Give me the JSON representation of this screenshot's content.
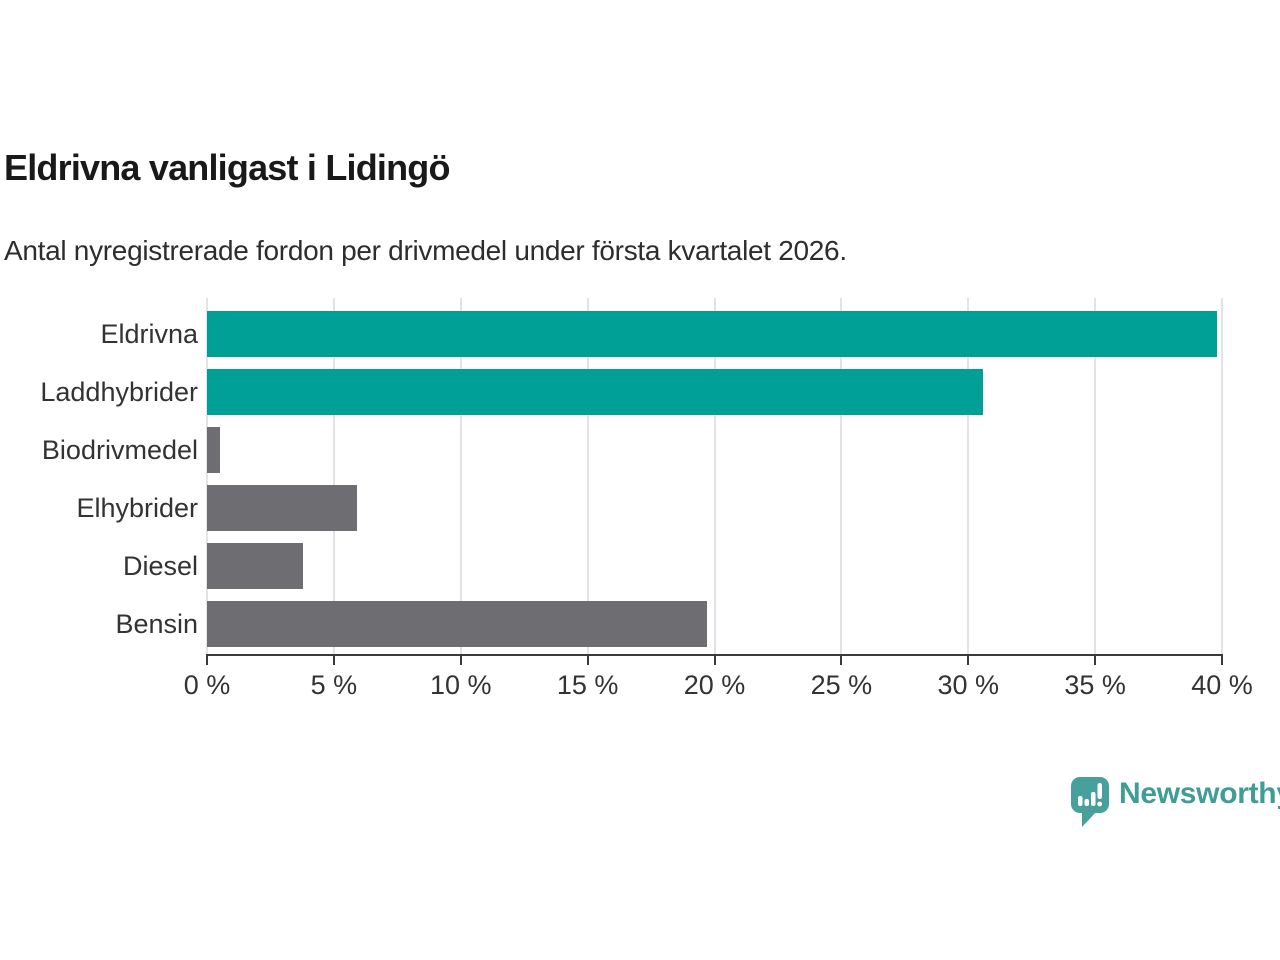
{
  "title": "Eldrivna vanligast i Lidingö",
  "subtitle": "Antal nyregistrerade fordon per drivmedel under första kvartalet 2026.",
  "chart_data": {
    "type": "bar",
    "orientation": "horizontal",
    "title": "Eldrivna vanligast i Lidingö",
    "subtitle": "Antal nyregistrerade fordon per drivmedel under första kvartalet 2026.",
    "categories": [
      "Eldrivna",
      "Laddhybrider",
      "Biodrivmedel",
      "Elhybrider",
      "Diesel",
      "Bensin"
    ],
    "values": [
      39.8,
      30.6,
      0.5,
      5.9,
      3.8,
      19.7
    ],
    "value_unit": "%",
    "xlabel": "",
    "ylabel": "",
    "xlim": [
      0,
      40
    ],
    "xticks": [
      0,
      5,
      10,
      15,
      20,
      25,
      30,
      35,
      40
    ],
    "xtick_label_format": "{v} %",
    "grid": true,
    "legend": false,
    "colors": {
      "highlight": "#00A096",
      "default": "#6D6D72",
      "by_category": [
        "#00A096",
        "#00A096",
        "#6D6D72",
        "#6D6D72",
        "#6D6D72",
        "#6D6D72"
      ]
    }
  },
  "branding": {
    "logo_text": "Newsworthy",
    "logo_color": "#3F9C97",
    "logo_bubble_color": "#47A09B",
    "logo_icon": "speech-bubble-bar-chart-icon"
  }
}
